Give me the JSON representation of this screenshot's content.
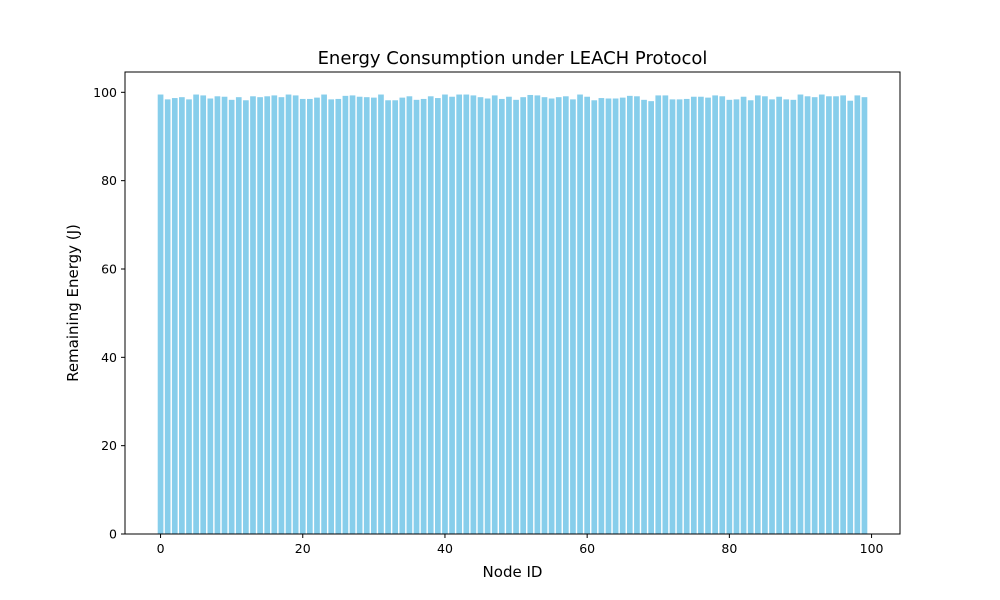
{
  "chart_data": {
    "type": "bar",
    "title": "Energy Consumption under LEACH Protocol",
    "xlabel": "Node ID",
    "ylabel": "Remaining Energy (J)",
    "xlim": [
      -5,
      104
    ],
    "ylim": [
      0,
      104.6
    ],
    "xticks": [
      0,
      20,
      40,
      60,
      80,
      100
    ],
    "yticks": [
      0,
      20,
      40,
      60,
      80,
      100
    ],
    "grid": false,
    "bar_color": "#87ceeb",
    "x": [
      0,
      1,
      2,
      3,
      4,
      5,
      6,
      7,
      8,
      9,
      10,
      11,
      12,
      13,
      14,
      15,
      16,
      17,
      18,
      19,
      20,
      21,
      22,
      23,
      24,
      25,
      26,
      27,
      28,
      29,
      30,
      31,
      32,
      33,
      34,
      35,
      36,
      37,
      38,
      39,
      40,
      41,
      42,
      43,
      44,
      45,
      46,
      47,
      48,
      49,
      50,
      51,
      52,
      53,
      54,
      55,
      56,
      57,
      58,
      59,
      60,
      61,
      62,
      63,
      64,
      65,
      66,
      67,
      68,
      69,
      70,
      71,
      72,
      73,
      74,
      75,
      76,
      77,
      78,
      79,
      80,
      81,
      82,
      83,
      84,
      85,
      86,
      87,
      88,
      89,
      90,
      91,
      92,
      93,
      94,
      95,
      96,
      97,
      98,
      99
    ],
    "values": [
      99.5,
      98.4,
      98.7,
      98.9,
      98.4,
      99.5,
      99.3,
      98.6,
      99.1,
      99.0,
      98.3,
      98.9,
      98.2,
      99.1,
      98.9,
      99.1,
      99.3,
      98.9,
      99.5,
      99.3,
      98.5,
      98.5,
      98.8,
      99.5,
      98.4,
      98.5,
      99.2,
      99.3,
      99.0,
      98.9,
      98.8,
      99.5,
      98.2,
      98.2,
      98.8,
      99.1,
      98.3,
      98.5,
      99.1,
      98.7,
      99.5,
      99.0,
      99.5,
      99.5,
      99.3,
      98.9,
      98.6,
      99.3,
      98.5,
      99.0,
      98.3,
      98.9,
      99.4,
      99.3,
      98.9,
      98.6,
      98.9,
      99.1,
      98.4,
      99.5,
      99.0,
      98.2,
      98.7,
      98.6,
      98.6,
      98.8,
      99.2,
      99.1,
      98.3,
      98.0,
      99.3,
      99.3,
      98.4,
      98.4,
      98.5,
      99.0,
      99.0,
      98.8,
      99.3,
      99.1,
      98.3,
      98.4,
      99.0,
      98.2,
      99.3,
      99.1,
      98.4,
      99.0,
      98.4,
      98.3,
      99.5,
      99.1,
      98.9,
      99.5,
      99.1,
      99.1,
      99.3,
      98.1,
      99.3,
      98.9
    ]
  }
}
